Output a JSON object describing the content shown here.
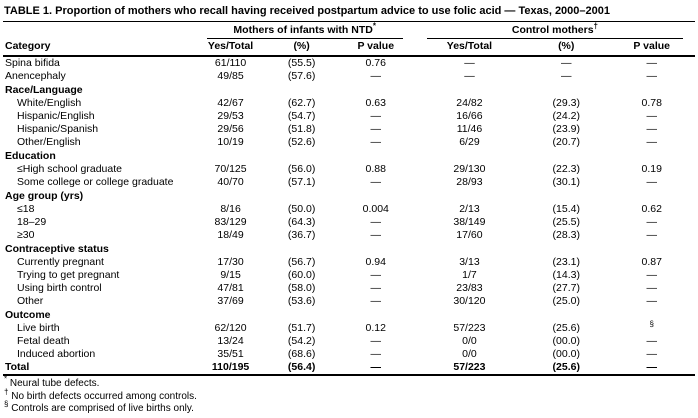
{
  "title": "TABLE 1. Proportion of mothers who recall having received postpartum advice to use folic acid — Texas, 2000–2001",
  "header": {
    "category_label": "Category",
    "groups": [
      {
        "label": "Mothers of infants with NTD",
        "marker": "*",
        "columns": [
          "Yes/Total",
          "(%)",
          "P value"
        ]
      },
      {
        "label": "Control mothers",
        "marker": "†",
        "columns": [
          "Yes/Total",
          "(%)",
          "P value"
        ]
      }
    ]
  },
  "rows": [
    {
      "label": "Spina bifida",
      "type": "data",
      "indent": false,
      "values": [
        "61/110",
        "(55.5)",
        "0.76",
        "—",
        "—",
        "—"
      ]
    },
    {
      "label": "Anencephaly",
      "type": "data",
      "indent": false,
      "values": [
        "49/85",
        "(57.6)",
        "—",
        "—",
        "—",
        "—"
      ]
    },
    {
      "label": "Race/Language",
      "type": "section",
      "indent": false,
      "values": []
    },
    {
      "label": "White/English",
      "type": "data",
      "indent": true,
      "values": [
        "42/67",
        "(62.7)",
        "0.63",
        "24/82",
        "(29.3)",
        "0.78"
      ]
    },
    {
      "label": "Hispanic/English",
      "type": "data",
      "indent": true,
      "values": [
        "29/53",
        "(54.7)",
        "—",
        "16/66",
        "(24.2)",
        "—"
      ]
    },
    {
      "label": "Hispanic/Spanish",
      "type": "data",
      "indent": true,
      "values": [
        "29/56",
        "(51.8)",
        "—",
        "11/46",
        "(23.9)",
        "—"
      ]
    },
    {
      "label": "Other/English",
      "type": "data",
      "indent": true,
      "values": [
        "10/19",
        "(52.6)",
        "—",
        "6/29",
        "(20.7)",
        "—"
      ]
    },
    {
      "label": "Education",
      "type": "section",
      "indent": false,
      "values": []
    },
    {
      "label": "≤High school graduate",
      "type": "data",
      "indent": true,
      "values": [
        "70/125",
        "(56.0)",
        "0.88",
        "29/130",
        "(22.3)",
        "0.19"
      ]
    },
    {
      "label": "Some college or college graduate",
      "type": "data",
      "indent": true,
      "values": [
        "40/70",
        "(57.1)",
        "—",
        "28/93",
        "(30.1)",
        "—"
      ]
    },
    {
      "label": "Age group (yrs)",
      "type": "section",
      "indent": false,
      "values": []
    },
    {
      "label": "≤18",
      "type": "data",
      "indent": true,
      "values": [
        "8/16",
        "(50.0)",
        "0.004",
        "2/13",
        "(15.4)",
        "0.62"
      ]
    },
    {
      "label": "18–29",
      "type": "data",
      "indent": true,
      "values": [
        "83/129",
        "(64.3)",
        "—",
        "38/149",
        "(25.5)",
        "—"
      ]
    },
    {
      "label": "≥30",
      "type": "data",
      "indent": true,
      "values": [
        "18/49",
        "(36.7)",
        "—",
        "17/60",
        "(28.3)",
        "—"
      ]
    },
    {
      "label": "Contraceptive status",
      "type": "section",
      "indent": false,
      "values": []
    },
    {
      "label": "Currently pregnant",
      "type": "data",
      "indent": true,
      "values": [
        "17/30",
        "(56.7)",
        "0.94",
        "3/13",
        "(23.1)",
        "0.87"
      ]
    },
    {
      "label": "Trying to get pregnant",
      "type": "data",
      "indent": true,
      "values": [
        "9/15",
        "(60.0)",
        "—",
        "1/7",
        "(14.3)",
        "—"
      ]
    },
    {
      "label": "Using birth control",
      "type": "data",
      "indent": true,
      "values": [
        "47/81",
        "(58.0)",
        "—",
        "23/83",
        "(27.7)",
        "—"
      ]
    },
    {
      "label": "Other",
      "type": "data",
      "indent": true,
      "values": [
        "37/69",
        "(53.6)",
        "—",
        "30/120",
        "(25.0)",
        "—"
      ]
    },
    {
      "label": "Outcome",
      "type": "section",
      "indent": false,
      "values": []
    },
    {
      "label": "Live birth",
      "type": "data",
      "indent": true,
      "values": [
        "62/120",
        "(51.7)",
        "0.12",
        "57/223",
        "(25.6)",
        "§"
      ]
    },
    {
      "label": "Fetal death",
      "type": "data",
      "indent": true,
      "values": [
        "13/24",
        "(54.2)",
        "—",
        "0/0",
        "(00.0)",
        "—"
      ]
    },
    {
      "label": "Induced abortion",
      "type": "data",
      "indent": true,
      "values": [
        "35/51",
        "(68.6)",
        "—",
        "0/0",
        "(00.0)",
        "—"
      ]
    },
    {
      "label": "Total",
      "type": "total",
      "indent": false,
      "values": [
        "110/195",
        "(56.4)",
        "—",
        "57/223",
        "(25.6)",
        "—"
      ]
    }
  ],
  "footnotes": [
    {
      "marker": "*",
      "text": "Neural tube defects."
    },
    {
      "marker": "†",
      "text": "No birth defects occurred among controls."
    },
    {
      "marker": "§",
      "text": "Controls are comprised of live births only."
    }
  ]
}
